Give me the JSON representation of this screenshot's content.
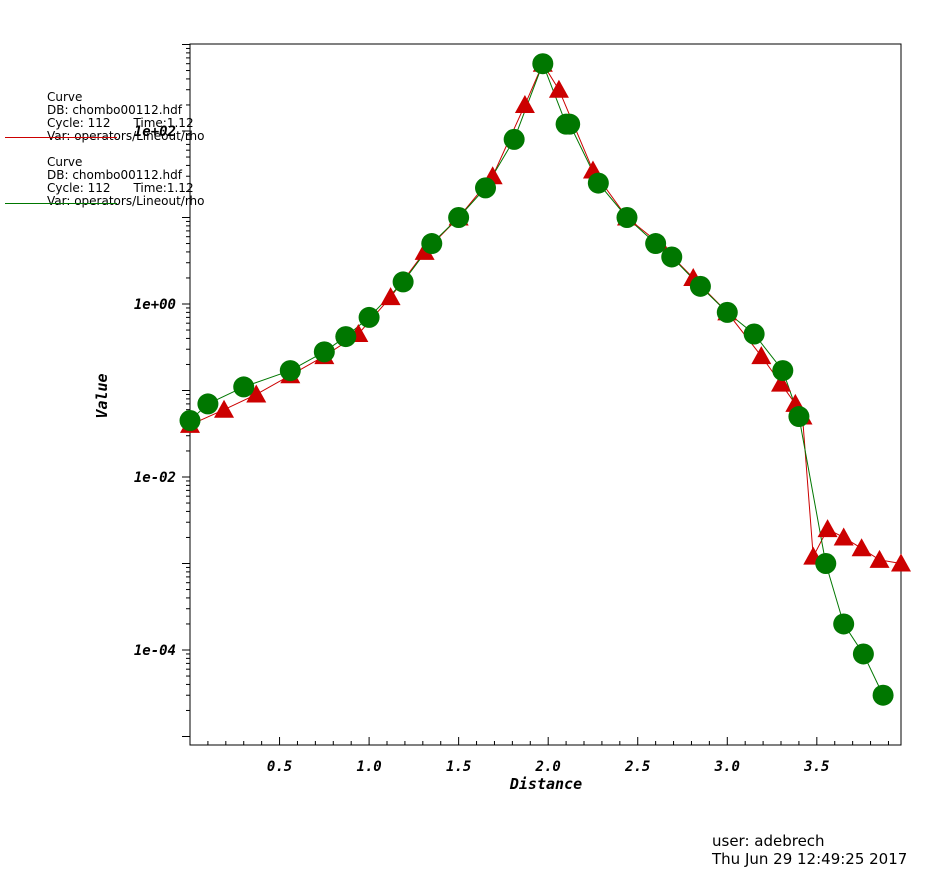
{
  "legend": [
    {
      "title": "Curve",
      "db": "DB: chombo00112.hdf",
      "cycle": "Cycle: 112      Time:1.12",
      "var": "Var: operators/Lineout/rho",
      "color": "#cc0000"
    },
    {
      "title": "Curve",
      "db": "DB: chombo00112.hdf",
      "cycle": "Cycle: 112      Time:1.12",
      "var": "Var: operators/Lineout/rho",
      "color": "#007700"
    }
  ],
  "footer": {
    "user": "user: adebrech",
    "timestamp": "Thu Jun 29 12:49:25 2017"
  },
  "chart_data": {
    "type": "line",
    "xlabel": "Distance",
    "ylabel": "Value",
    "y_scale": "log",
    "xlim": [
      0.0,
      3.97
    ],
    "ylim_log10": [
      -5.0,
      3.0
    ],
    "x_ticks": [
      "0.5",
      "1.0",
      "1.5",
      "2.0",
      "2.5",
      "3.0",
      "3.5"
    ],
    "y_ticks": [
      "1e-04",
      "1e-02",
      "1e+00",
      "1e+02"
    ],
    "grid": false,
    "legend_position": "top-left",
    "series": [
      {
        "color": "#cc0000",
        "marker": "triangle",
        "x": [
          0.0,
          0.19,
          0.37,
          0.56,
          0.75,
          0.94,
          1.12,
          1.31,
          1.5,
          1.69,
          1.87,
          1.97,
          2.06,
          2.25,
          2.44,
          2.62,
          2.81,
          3.0,
          3.19,
          3.3,
          3.38,
          3.42,
          3.48,
          3.56,
          3.65,
          3.75,
          3.85,
          3.97
        ],
        "y": [
          0.04,
          0.06,
          0.09,
          0.15,
          0.25,
          0.45,
          1.2,
          4.0,
          10.0,
          30.0,
          200.0,
          600.0,
          300.0,
          35.0,
          10.0,
          5.0,
          2.0,
          0.8,
          0.25,
          0.12,
          0.07,
          0.05,
          0.0012,
          0.0025,
          0.002,
          0.0015,
          0.0011,
          0.001
        ]
      },
      {
        "color": "#007700",
        "marker": "circle",
        "x": [
          0.0,
          0.1,
          0.3,
          0.56,
          0.75,
          0.87,
          1.0,
          1.19,
          1.35,
          1.5,
          1.65,
          1.81,
          1.97,
          2.1,
          2.12,
          2.28,
          2.44,
          2.6,
          2.69,
          2.85,
          3.0,
          3.15,
          3.31,
          3.4,
          3.55,
          3.65,
          3.76,
          3.87
        ],
        "y": [
          0.045,
          0.07,
          0.11,
          0.17,
          0.28,
          0.42,
          0.7,
          1.8,
          5.0,
          10.0,
          22.0,
          80.0,
          600.0,
          120.0,
          120.0,
          25.0,
          10.0,
          5.0,
          3.5,
          1.6,
          0.8,
          0.45,
          0.17,
          0.05,
          0.001,
          0.0002,
          9e-05,
          3e-05
        ]
      }
    ]
  }
}
